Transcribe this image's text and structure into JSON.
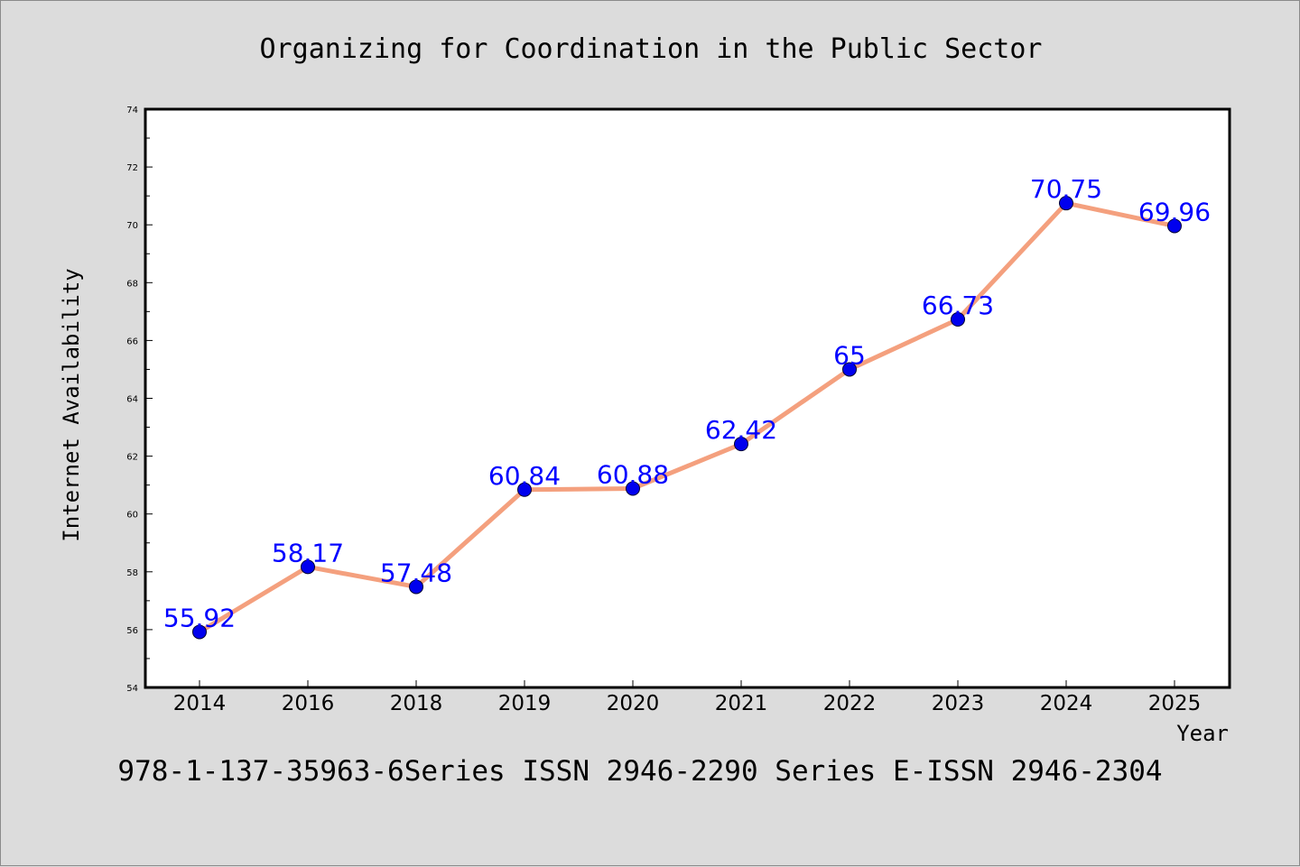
{
  "chart_data": {
    "type": "line",
    "title": "Organizing for Coordination in the Public Sector",
    "xlabel": "Year",
    "ylabel": "Internet Availability",
    "categories": [
      "2014",
      "2016",
      "2018",
      "2019",
      "2020",
      "2021",
      "2022",
      "2023",
      "2024",
      "2025"
    ],
    "values": [
      55.92,
      58.17,
      57.48,
      60.84,
      60.88,
      62.42,
      65,
      66.73,
      70.75,
      69.96
    ],
    "value_labels": [
      "55.92",
      "58.17",
      "57.48",
      "60.84",
      "60.88",
      "62.42",
      "65",
      "66.73",
      "70.75",
      "69.96"
    ],
    "ylim": [
      54,
      74
    ],
    "yticks": [
      "54",
      "56",
      "58",
      "60",
      "62",
      "64",
      "66",
      "68",
      "70",
      "72",
      "74"
    ],
    "grid": false,
    "legend": "none",
    "footer": "978-1-137-35963-6Series ISSN 2946-2290 Series E-ISSN 2946-2304",
    "colors": {
      "background": "#dcdcdc",
      "plot_background": "#ffffff",
      "line": "#f4a07e",
      "marker": "#0000ee",
      "value_label": "#0000ff",
      "text": "#000000"
    }
  }
}
